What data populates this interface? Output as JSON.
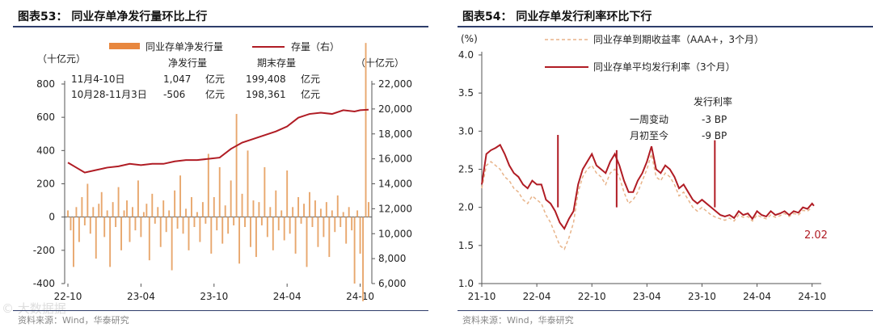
{
  "watermark": "© 大数据据",
  "charts": [
    {
      "title": "图表53：  同业存单净发行量环比上行",
      "source": "资料来源：Wind，华泰研究",
      "chart_data": {
        "type": "bar+line",
        "legend": [
          "同业存单净发行量",
          "存量（右）"
        ],
        "legend_placement": "top",
        "y_left_unit": "（十亿元）",
        "y_right_unit": "（十亿元）",
        "y_left_ticks": [
          "800",
          "600",
          "400",
          "200",
          "0",
          "-200",
          "-400"
        ],
        "y_right_ticks": [
          "22,000",
          "20,000",
          "18,000",
          "16,000",
          "14,000",
          "12,000",
          "10,000",
          "8,000",
          "6,000"
        ],
        "x_ticks": [
          "22-10",
          "23-04",
          "23-10",
          "24-04",
          "24-10"
        ],
        "ylim_left": [
          -400,
          800
        ],
        "ylim_right": [
          6000,
          22000
        ],
        "colors": {
          "bars": "#e8a76d",
          "bars_legend": "#e8873e",
          "line": "#b01c24"
        },
        "annotation": {
          "header": [
            "净发行量",
            "期末存量"
          ],
          "rows": [
            {
              "period": "11月4-10日",
              "net": "1,047",
              "unit1": "亿元",
              "stock": "199,408",
              "unit2": "亿元"
            },
            {
              "period": "10月28-11月3日",
              "net": "-506",
              "unit1": "亿元",
              "stock": "198,361",
              "unit2": "亿元"
            }
          ]
        },
        "weeks": 108,
        "stock_series_x": [
          0,
          3,
          6,
          10,
          14,
          18,
          22,
          26,
          30,
          34,
          38,
          42,
          46,
          50,
          54,
          58,
          62,
          66,
          70,
          74,
          78,
          82,
          86,
          90,
          94,
          98,
          102,
          104,
          107
        ],
        "stock_series_y": [
          15700,
          15300,
          14900,
          15100,
          15300,
          15400,
          15600,
          15500,
          15600,
          15600,
          15800,
          15900,
          15900,
          16000,
          16100,
          16800,
          17300,
          17600,
          17900,
          18200,
          18600,
          19300,
          19600,
          19700,
          19600,
          19900,
          19800,
          19900,
          19940
        ],
        "net_issue_values": [
          40,
          -80,
          -300,
          60,
          -150,
          120,
          -50,
          200,
          -100,
          60,
          -250,
          80,
          150,
          -120,
          40,
          -300,
          90,
          -60,
          180,
          -200,
          40,
          100,
          -150,
          60,
          -80,
          220,
          -120,
          30,
          80,
          -260,
          140,
          -40,
          60,
          -180,
          100,
          -90,
          40,
          -320,
          160,
          -70,
          250,
          -100,
          50,
          -200,
          120,
          -60,
          30,
          -150,
          90,
          -40,
          380,
          -220,
          120,
          -80,
          300,
          -160,
          70,
          -100,
          220,
          -50,
          620,
          -280,
          140,
          -60,
          400,
          -180,
          100,
          -240,
          90,
          -50,
          300,
          -120,
          60,
          -200,
          160,
          -80,
          40,
          -140,
          280,
          -100,
          60,
          -220,
          120,
          -40,
          80,
          -300,
          150,
          -60,
          100,
          -180,
          50,
          -120,
          90,
          -240,
          40,
          -90,
          130,
          -60,
          30,
          -160,
          60,
          -80,
          -400,
          40,
          -220,
          -506,
          1047,
          90
        ]
      }
    },
    {
      "title": "图表54：  同业存单发行利率环比下行",
      "source": "资料来源：Wind，华泰研究",
      "chart_data": {
        "type": "line",
        "y_unit": "(%)",
        "series": [
          {
            "name": "同业存单到期收益率（AAA+，3个月）",
            "style": "dashed",
            "color": "#e8b48a"
          },
          {
            "name": "同业存单平均发行利率（3个月）",
            "style": "solid",
            "color": "#b01c24"
          }
        ],
        "legend_placement": "top",
        "y_ticks": [
          "4.0",
          "3.5",
          "3.0",
          "2.5",
          "2.0",
          "1.5",
          "1.0"
        ],
        "ylim": [
          1.0,
          4.0
        ],
        "x_ticks": [
          "21-10",
          "22-04",
          "22-10",
          "23-04",
          "23-10",
          "24-04",
          "24-10"
        ],
        "annotation": {
          "header": "发行利率",
          "rows": [
            {
              "label": "一周变动",
              "value": "-3 BP"
            },
            {
              "label": "月初至今",
              "value": "-9 BP"
            }
          ]
        },
        "end_label": "2.02",
        "months": 37,
        "issue_rate_x": [
          0,
          0.5,
          1,
          1.5,
          2,
          2.5,
          3,
          3.5,
          4,
          4.5,
          5,
          5.5,
          6,
          6.5,
          7,
          7.5,
          8,
          8.5,
          9,
          9.5,
          10,
          10.5,
          11,
          11.5,
          12,
          12.5,
          13,
          13.5,
          14,
          14.5,
          15,
          15.5,
          16,
          16.5,
          17,
          17.5,
          18,
          18.5,
          19,
          19.5,
          20,
          20.5,
          21,
          21.5,
          22,
          22.5,
          23,
          23.5,
          24,
          24.5,
          25,
          25.5,
          26,
          26.5,
          27,
          27.5,
          28,
          28.5,
          29,
          29.5,
          30,
          30.5,
          31,
          31.5,
          32,
          32.5,
          33,
          33.5,
          34,
          34.5,
          35,
          35.5,
          36,
          36.2
        ],
        "issue_rate_y": [
          2.3,
          2.7,
          2.75,
          2.78,
          2.82,
          2.7,
          2.55,
          2.45,
          2.4,
          2.3,
          2.25,
          2.35,
          2.3,
          2.3,
          2.1,
          2.05,
          1.95,
          1.8,
          1.72,
          1.85,
          1.95,
          2.3,
          2.5,
          2.6,
          2.7,
          2.55,
          2.5,
          2.45,
          2.6,
          2.7,
          2.55,
          2.35,
          2.2,
          2.2,
          2.35,
          2.45,
          2.6,
          2.8,
          2.5,
          2.45,
          2.55,
          2.5,
          2.4,
          2.25,
          2.3,
          2.2,
          2.1,
          2.05,
          2.1,
          2.05,
          2.0,
          1.95,
          1.9,
          1.88,
          1.9,
          1.86,
          1.95,
          1.9,
          1.92,
          1.85,
          1.95,
          1.9,
          1.88,
          1.95,
          1.9,
          1.92,
          1.95,
          1.9,
          1.95,
          1.93,
          2.0,
          1.98,
          2.05,
          2.02
        ],
        "yield_x": [
          0,
          0.5,
          1,
          1.5,
          2,
          2.5,
          3,
          3.5,
          4,
          4.5,
          5,
          5.5,
          6,
          6.5,
          7,
          7.5,
          8,
          8.5,
          9,
          9.5,
          10,
          10.5,
          11,
          11.5,
          12,
          12.5,
          13,
          13.5,
          14,
          14.5,
          15,
          15.5,
          16,
          16.5,
          17,
          17.5,
          18,
          18.5,
          19,
          19.5,
          20,
          20.5,
          21,
          21.5,
          22,
          22.5,
          23,
          23.5,
          24,
          24.5,
          25,
          25.5,
          26,
          26.5,
          27,
          27.5,
          28,
          28.5,
          29,
          29.5,
          30,
          30.5,
          31,
          31.5,
          32,
          32.5,
          33,
          33.5,
          34,
          34.5,
          35,
          35.5,
          36
        ],
        "yield_y": [
          2.25,
          2.55,
          2.6,
          2.55,
          2.5,
          2.4,
          2.35,
          2.25,
          2.2,
          2.1,
          2.05,
          2.15,
          2.1,
          2.05,
          1.9,
          1.8,
          1.65,
          1.5,
          1.45,
          1.6,
          1.8,
          2.2,
          2.4,
          2.5,
          2.55,
          2.45,
          2.4,
          2.3,
          2.45,
          2.5,
          2.4,
          2.2,
          2.05,
          2.1,
          2.2,
          2.35,
          2.5,
          2.7,
          2.4,
          2.35,
          2.45,
          2.4,
          2.3,
          2.15,
          2.2,
          2.1,
          2.0,
          1.95,
          2.0,
          1.95,
          1.9,
          1.87,
          1.85,
          1.83,
          1.86,
          1.82,
          1.9,
          1.87,
          1.88,
          1.82,
          1.9,
          1.87,
          1.85,
          1.9,
          1.87,
          1.89,
          1.92,
          1.88,
          1.92,
          1.9,
          1.96,
          1.95,
          2.0
        ]
      }
    }
  ]
}
